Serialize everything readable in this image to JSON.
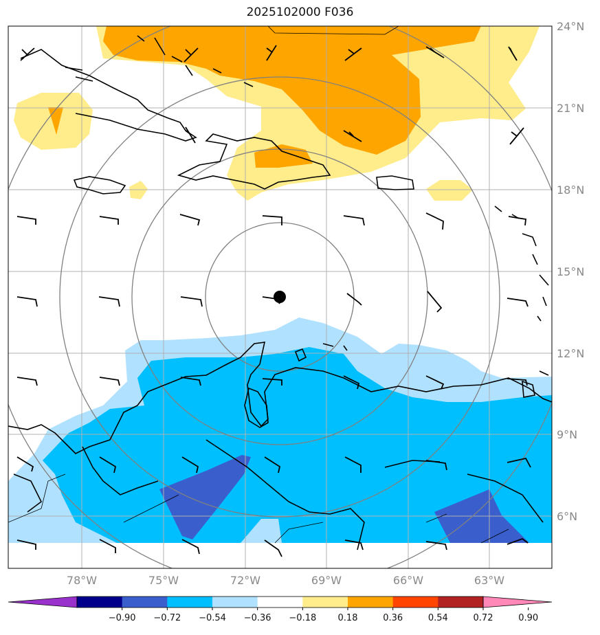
{
  "title": "2025102000 F036",
  "map": {
    "lat_labels": [
      "24°N",
      "21°N",
      "18°N",
      "15°N",
      "12°N",
      "9°N",
      "6°N"
    ],
    "lon_labels": [
      "78°W",
      "75°W",
      "72°W",
      "69°W",
      "66°W",
      "63°W"
    ],
    "center_marker": "storm-center-dot",
    "range_ring_count": 4
  },
  "colorbar": {
    "tick_labels": [
      "−0.90",
      "−0.72",
      "−0.54",
      "−0.36",
      "−0.18",
      "0.18",
      "0.36",
      "0.54",
      "0.72",
      "0.90"
    ],
    "colors": [
      "#9932cc",
      "#00008b",
      "#3a5fcd",
      "#00bfff",
      "#b0e2ff",
      "#ffffff",
      "#ffec8b",
      "#ffa500",
      "#ff4500",
      "#b22222",
      "#ff88b8"
    ]
  }
}
